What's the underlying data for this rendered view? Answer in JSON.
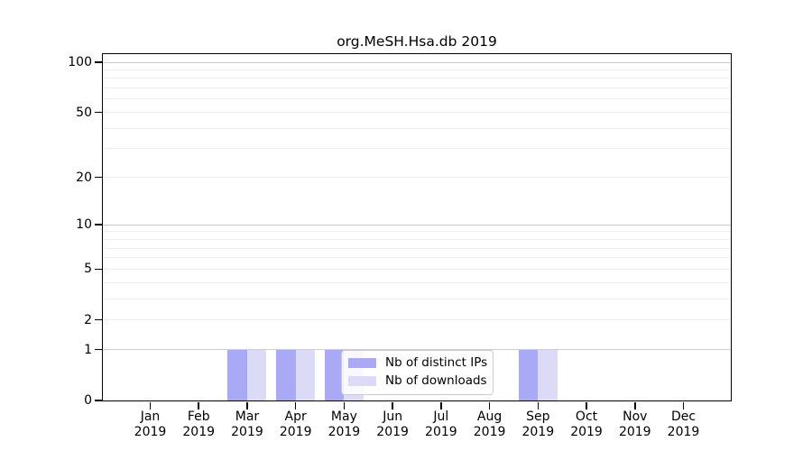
{
  "title": "org.MeSH.Hsa.db 2019",
  "colors": {
    "distinct_ips": "#a9a9f5",
    "downloads": "#dbdbf8",
    "grid_major": "#cccccc",
    "grid_minor": "#ededed",
    "axis": "#000000",
    "legend_border": "#cccccc"
  },
  "legend": {
    "items": [
      {
        "label": "Nb of distinct IPs",
        "color": "#a9a9f5"
      },
      {
        "label": "Nb of downloads",
        "color": "#dbdbf8"
      }
    ]
  },
  "chart_data": {
    "type": "bar",
    "title": "org.MeSH.Hsa.db 2019",
    "categories": [
      "Jan 2019",
      "Feb 2019",
      "Mar 2019",
      "Apr 2019",
      "May 2019",
      "Jun 2019",
      "Jul 2019",
      "Aug 2019",
      "Sep 2019",
      "Oct 2019",
      "Nov 2019",
      "Dec 2019"
    ],
    "series": [
      {
        "name": "Nb of distinct IPs",
        "color": "#a9a9f5",
        "values": [
          0,
          0,
          1,
          1,
          1,
          0,
          0,
          0,
          1,
          0,
          0,
          0
        ]
      },
      {
        "name": "Nb of downloads",
        "color": "#dbdbf8",
        "values": [
          0,
          0,
          1,
          1,
          1,
          0,
          0,
          0,
          1,
          0,
          0,
          0
        ]
      }
    ],
    "xlabel": "",
    "ylabel": "",
    "y_scale": "log1p",
    "ylim": [
      0,
      100
    ],
    "y_ticks": [
      0,
      1,
      2,
      5,
      10,
      20,
      50,
      100
    ],
    "y_major_gridlines": [
      1,
      10,
      100
    ],
    "y_minor_gridlines": [
      2,
      3,
      4,
      5,
      6,
      7,
      8,
      9,
      20,
      30,
      40,
      50,
      60,
      70,
      80,
      90
    ],
    "grid": true,
    "legend_position": "inside lower center"
  }
}
